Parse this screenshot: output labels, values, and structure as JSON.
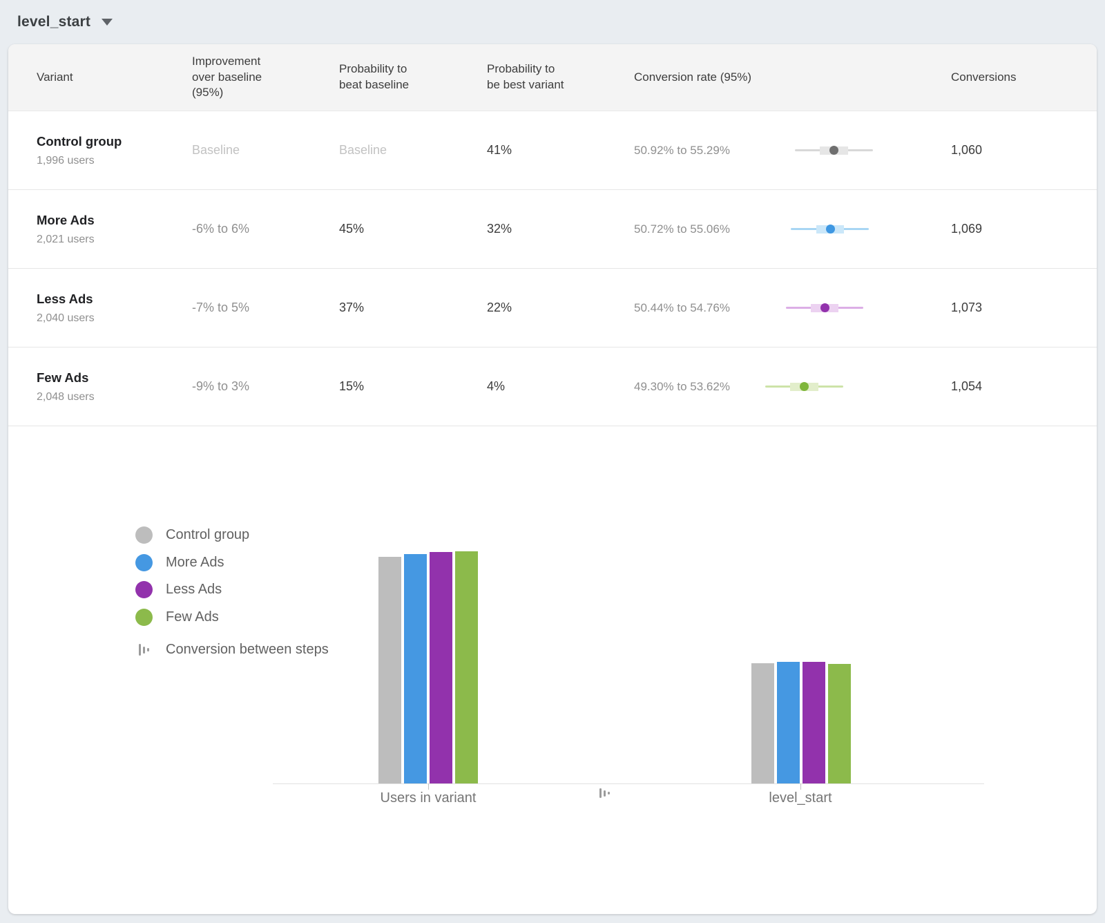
{
  "page": {
    "event_selector": "level_start"
  },
  "table": {
    "columns": {
      "variant": "Variant",
      "improvement": "Improvement over baseline (95%)",
      "prob_beat": "Probability to beat baseline",
      "prob_best": "Probability to be best variant",
      "conv_rate": "Conversion rate (95%)",
      "conversions": "Conversions"
    },
    "rows": [
      {
        "variant": "Control group",
        "users": "1,996 users",
        "improvement": "Baseline",
        "prob_beat": "Baseline",
        "prob_best": "41%",
        "conv_rate": "50.92% to 55.29%",
        "conversions": "1,060"
      },
      {
        "variant": "More Ads",
        "users": "2,021 users",
        "improvement": "-6% to 6%",
        "prob_beat": "45%",
        "prob_best": "32%",
        "conv_rate": "50.72% to 55.06%",
        "conversions": "1,069"
      },
      {
        "variant": "Less Ads",
        "users": "2,040 users",
        "improvement": "-7% to 5%",
        "prob_beat": "37%",
        "prob_best": "22%",
        "conv_rate": "50.44% to 54.76%",
        "conversions": "1,073"
      },
      {
        "variant": "Few Ads",
        "users": "2,048 users",
        "improvement": "-9% to 3%",
        "prob_beat": "15%",
        "prob_best": "4%",
        "conv_rate": "49.30% to 53.62%",
        "conversions": "1,054"
      }
    ]
  },
  "conversion_ci": [
    {
      "variant": "Control group",
      "low": 50.92,
      "high": 55.29,
      "point": 53.11,
      "line": "#d8d8d8",
      "band": "#e6e6e6",
      "dot": "#6f6f6f"
    },
    {
      "variant": "More Ads",
      "low": 50.72,
      "high": 55.06,
      "point": 52.9,
      "line": "#a8d6f4",
      "band": "#cbe7f9",
      "dot": "#3e97e2"
    },
    {
      "variant": "Less Ads",
      "low": 50.44,
      "high": 54.76,
      "point": 52.6,
      "line": "#dcaee6",
      "band": "#ecd2f1",
      "dot": "#9232ac"
    },
    {
      "variant": "Few Ads",
      "low": 49.3,
      "high": 53.62,
      "point": 51.46,
      "line": "#cde3a8",
      "band": "#e2eecb",
      "dot": "#7fb63c"
    }
  ],
  "chart_data": {
    "type": "bar",
    "title": "",
    "categories": [
      "Users in variant",
      "level_start"
    ],
    "series": [
      {
        "name": "Control group",
        "color": "#bdbdbd",
        "values": [
          1996,
          1060
        ]
      },
      {
        "name": "More Ads",
        "color": "#4598e2",
        "values": [
          2021,
          1069
        ]
      },
      {
        "name": "Less Ads",
        "color": "#9232ac",
        "values": [
          2040,
          1073
        ]
      },
      {
        "name": "Few Ads",
        "color": "#8cba4b",
        "values": [
          2048,
          1054
        ]
      }
    ],
    "extra_legend": "Conversion between steps",
    "ylabel": "",
    "xlabel": "",
    "ylim": [
      0,
      2200
    ],
    "grid": false,
    "legend_position": "left"
  }
}
